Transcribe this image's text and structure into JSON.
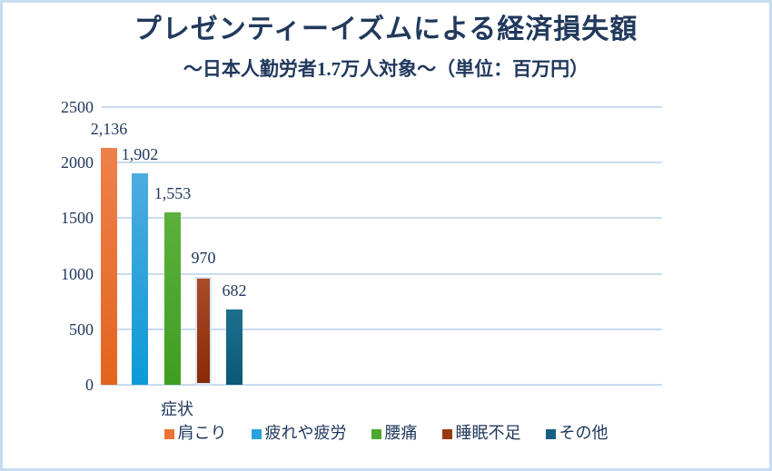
{
  "chart_data": {
    "type": "bar",
    "title": "プレゼンティーイズムによる経済損失額",
    "subtitle": "～日本人勤労者1.7万人対象～（単位：百万円）",
    "xlabel": "症状",
    "categories": [
      "症状"
    ],
    "y_ticks": [
      0,
      500,
      1000,
      1500,
      2000,
      2500
    ],
    "ylim": [
      0,
      2500
    ],
    "grid": true,
    "legend_position": "bottom",
    "series": [
      {
        "name": "肩こり",
        "value": 2136,
        "label": "2,136",
        "color_top": "#EF814B",
        "color_bottom": "#E4641D",
        "legend_color": "#EC7430"
      },
      {
        "name": "疲れや疲労",
        "value": 1902,
        "label": "1,902",
        "color_top": "#4EACDF",
        "color_bottom": "#0C9AD7",
        "legend_color": "#2AA2DB"
      },
      {
        "name": "腰痛",
        "value": 1553,
        "label": "1,553",
        "color_top": "#5CB03C",
        "color_bottom": "#3E9E21",
        "legend_color": "#4DA62D"
      },
      {
        "name": "睡眠不足",
        "value": 970,
        "label": "970",
        "color_top": "#A84C29",
        "color_bottom": "#8A2906",
        "legend_color": "#993A13",
        "highlight_border": "#D8E6F4"
      },
      {
        "name": "その他",
        "value": 682,
        "label": "682",
        "color_top": "#1E6F8E",
        "color_bottom": "#0B5879",
        "legend_color": "#136080"
      }
    ],
    "colors": {
      "text": "#21395C",
      "gridline": "#C9DCF0",
      "canvas_border": "#C7DCF0",
      "background": "#FFFFFF"
    }
  }
}
